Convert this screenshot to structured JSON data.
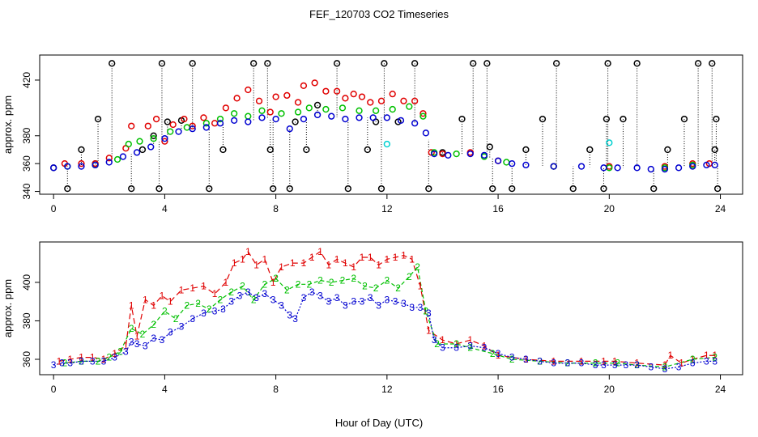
{
  "figure": {
    "title": "FEF_120703  CO2 Timeseries",
    "xlabel": "Hour of Day (UTC)"
  },
  "colors": {
    "black": "#000000",
    "red": "#e00000",
    "green": "#00c000",
    "blue": "#0000d0",
    "cyan": "#00d0d0"
  },
  "chart_data": [
    {
      "type": "scatter",
      "name": "top-panel",
      "ylabel": "approx. ppm",
      "xlim": [
        -0.5,
        24.8
      ],
      "ylim": [
        338,
        438
      ],
      "xticks": [
        0,
        4,
        8,
        12,
        16,
        20,
        24
      ],
      "yticks": [
        340,
        380,
        420
      ],
      "yticks_rendered": [
        340,
        360,
        380,
        420
      ],
      "marker": "circle",
      "range_lines": true,
      "series": [
        {
          "color": "black",
          "points": [
            [
              0.0,
              357
            ],
            [
              0.5,
              342
            ],
            [
              1.0,
              370
            ],
            [
              1.5,
              360
            ],
            [
              1.6,
              392
            ],
            [
              2.1,
              432
            ],
            [
              2.8,
              342
            ],
            [
              3.2,
              370
            ],
            [
              3.6,
              380
            ],
            [
              3.8,
              342
            ],
            [
              3.9,
              432
            ],
            [
              4.1,
              390
            ],
            [
              4.6,
              391
            ],
            [
              5.0,
              432
            ],
            [
              5.6,
              342
            ],
            [
              6.1,
              370
            ],
            [
              7.2,
              432
            ],
            [
              7.7,
              432
            ],
            [
              7.8,
              370
            ],
            [
              7.9,
              342
            ],
            [
              8.5,
              342
            ],
            [
              8.7,
              390
            ],
            [
              9.1,
              370
            ],
            [
              9.5,
              402
            ],
            [
              10.2,
              432
            ],
            [
              10.6,
              342
            ],
            [
              11.3,
              370
            ],
            [
              11.6,
              390
            ],
            [
              11.8,
              342
            ],
            [
              11.9,
              432
            ],
            [
              12.4,
              390
            ],
            [
              13.0,
              432
            ],
            [
              13.5,
              342
            ],
            [
              14.0,
              368
            ],
            [
              14.7,
              392
            ],
            [
              15.1,
              432
            ],
            [
              15.6,
              432
            ],
            [
              15.7,
              372
            ],
            [
              15.8,
              342
            ],
            [
              16.5,
              342
            ],
            [
              17.0,
              370
            ],
            [
              17.6,
              392
            ],
            [
              18.1,
              432
            ],
            [
              18.7,
              342
            ],
            [
              19.3,
              370
            ],
            [
              19.8,
              342
            ],
            [
              19.9,
              392
            ],
            [
              19.95,
              432
            ],
            [
              20.5,
              392
            ],
            [
              21.0,
              432
            ],
            [
              21.6,
              342
            ],
            [
              22.1,
              370
            ],
            [
              22.7,
              392
            ],
            [
              23.2,
              432
            ],
            [
              23.7,
              432
            ],
            [
              23.8,
              370
            ],
            [
              23.85,
              392
            ],
            [
              23.9,
              342
            ]
          ]
        },
        {
          "color": "red",
          "points": [
            [
              0.4,
              360
            ],
            [
              1.0,
              360
            ],
            [
              1.5,
              360
            ],
            [
              2.0,
              364
            ],
            [
              2.6,
              371
            ],
            [
              2.8,
              387
            ],
            [
              3.4,
              387
            ],
            [
              3.7,
              392
            ],
            [
              4.0,
              376
            ],
            [
              4.3,
              388
            ],
            [
              4.7,
              392
            ],
            [
              5.0,
              387
            ],
            [
              5.4,
              393
            ],
            [
              5.8,
              389
            ],
            [
              6.2,
              400
            ],
            [
              6.6,
              407
            ],
            [
              7.0,
              413
            ],
            [
              7.4,
              405
            ],
            [
              7.8,
              397
            ],
            [
              8.0,
              408
            ],
            [
              8.4,
              409
            ],
            [
              8.8,
              404
            ],
            [
              9.0,
              416
            ],
            [
              9.4,
              418
            ],
            [
              9.8,
              412
            ],
            [
              10.2,
              412
            ],
            [
              10.5,
              407
            ],
            [
              10.8,
              410
            ],
            [
              11.1,
              408
            ],
            [
              11.4,
              404
            ],
            [
              11.8,
              405
            ],
            [
              12.2,
              410
            ],
            [
              12.6,
              405
            ],
            [
              13.0,
              405
            ],
            [
              13.3,
              396
            ],
            [
              13.6,
              368
            ],
            [
              14.0,
              367
            ],
            [
              15.0,
              368
            ],
            [
              16.0,
              362
            ],
            [
              18.0,
              358
            ],
            [
              20.0,
              358
            ],
            [
              22.0,
              358
            ],
            [
              23.0,
              360
            ],
            [
              23.6,
              360
            ]
          ]
        },
        {
          "color": "green",
          "points": [
            [
              0.5,
              358
            ],
            [
              1.5,
              359
            ],
            [
              2.3,
              363
            ],
            [
              2.7,
              374
            ],
            [
              3.1,
              376
            ],
            [
              3.6,
              378
            ],
            [
              4.2,
              383
            ],
            [
              4.8,
              386
            ],
            [
              5.5,
              389
            ],
            [
              6.0,
              392
            ],
            [
              6.5,
              396
            ],
            [
              7.0,
              394
            ],
            [
              7.5,
              398
            ],
            [
              8.2,
              396
            ],
            [
              8.8,
              397
            ],
            [
              9.2,
              400
            ],
            [
              9.8,
              399
            ],
            [
              10.4,
              400
            ],
            [
              11.0,
              398
            ],
            [
              11.6,
              398
            ],
            [
              12.2,
              399
            ],
            [
              12.8,
              401
            ],
            [
              13.3,
              394
            ],
            [
              13.7,
              368
            ],
            [
              14.5,
              367
            ],
            [
              15.5,
              365
            ],
            [
              16.3,
              361
            ],
            [
              18.0,
              358
            ],
            [
              20.0,
              357
            ],
            [
              22.0,
              357
            ],
            [
              23.0,
              359
            ]
          ]
        },
        {
          "color": "blue",
          "points": [
            [
              0.0,
              357
            ],
            [
              0.5,
              358
            ],
            [
              1.0,
              358
            ],
            [
              1.5,
              359
            ],
            [
              2.0,
              361
            ],
            [
              2.5,
              365
            ],
            [
              3.0,
              368
            ],
            [
              3.5,
              372
            ],
            [
              4.0,
              378
            ],
            [
              4.5,
              383
            ],
            [
              5.0,
              385
            ],
            [
              5.5,
              386
            ],
            [
              6.0,
              389
            ],
            [
              6.5,
              391
            ],
            [
              7.0,
              390
            ],
            [
              7.5,
              393
            ],
            [
              8.0,
              392
            ],
            [
              8.5,
              385
            ],
            [
              9.0,
              392
            ],
            [
              9.5,
              395
            ],
            [
              10.0,
              394
            ],
            [
              10.5,
              392
            ],
            [
              11.0,
              393
            ],
            [
              11.5,
              393
            ],
            [
              12.0,
              393
            ],
            [
              12.5,
              391
            ],
            [
              13.0,
              389
            ],
            [
              13.4,
              382
            ],
            [
              13.7,
              367
            ],
            [
              14.2,
              366
            ],
            [
              15.0,
              367
            ],
            [
              15.5,
              366
            ],
            [
              16.0,
              362
            ],
            [
              16.5,
              360
            ],
            [
              17.0,
              359
            ],
            [
              18.0,
              358
            ],
            [
              19.0,
              358
            ],
            [
              19.8,
              357
            ],
            [
              20.3,
              357
            ],
            [
              21.0,
              357
            ],
            [
              21.5,
              356
            ],
            [
              22.0,
              356
            ],
            [
              22.5,
              357
            ],
            [
              23.0,
              358
            ],
            [
              23.5,
              359
            ],
            [
              23.8,
              359
            ]
          ]
        },
        {
          "color": "cyan",
          "points": [
            [
              12.0,
              374
            ],
            [
              20.0,
              375
            ]
          ]
        }
      ]
    },
    {
      "type": "line",
      "name": "bottom-panel",
      "ylabel": "approx. ppm",
      "xlim": [
        -0.5,
        24.8
      ],
      "ylim": [
        352,
        421
      ],
      "xticks": [
        0,
        4,
        8,
        12,
        16,
        20,
        24
      ],
      "yticks": [
        360,
        380,
        400
      ],
      "marker": "digit",
      "series": [
        {
          "label": "1",
          "color": "red",
          "x": [
            0.2,
            0.6,
            1.0,
            1.4,
            1.8,
            2.2,
            2.6,
            2.8,
            3.0,
            3.3,
            3.6,
            3.9,
            4.2,
            4.6,
            5.0,
            5.4,
            5.8,
            6.2,
            6.5,
            6.8,
            7.0,
            7.3,
            7.6,
            7.9,
            8.2,
            8.6,
            9.0,
            9.3,
            9.6,
            9.9,
            10.2,
            10.5,
            10.8,
            11.1,
            11.4,
            11.7,
            12.0,
            12.3,
            12.6,
            12.9,
            13.2,
            13.5,
            14.0,
            14.5,
            15.0,
            15.5,
            16.0,
            17.0,
            18.0,
            19.0,
            19.8,
            20.2,
            21.0,
            22.0,
            22.2,
            22.6,
            23.0,
            23.5,
            23.8
          ],
          "y": [
            359,
            360,
            361,
            361,
            360,
            363,
            367,
            388,
            372,
            391,
            388,
            393,
            390,
            396,
            397,
            398,
            394,
            400,
            410,
            412,
            416,
            409,
            412,
            400,
            408,
            410,
            410,
            413,
            416,
            409,
            412,
            410,
            408,
            413,
            413,
            409,
            412,
            413,
            414,
            412,
            398,
            375,
            370,
            368,
            370,
            367,
            362,
            360,
            359,
            359,
            359,
            359,
            358,
            357,
            362,
            358,
            360,
            362,
            362
          ]
        },
        {
          "label": "2",
          "color": "green",
          "x": [
            0.4,
            1.0,
            1.6,
            2.0,
            2.4,
            2.8,
            3.2,
            3.6,
            4.0,
            4.4,
            4.8,
            5.2,
            5.6,
            6.0,
            6.4,
            6.8,
            7.2,
            7.6,
            8.0,
            8.4,
            8.8,
            9.2,
            9.6,
            10.0,
            10.4,
            10.8,
            11.2,
            11.6,
            12.0,
            12.4,
            12.8,
            13.1,
            13.4,
            13.8,
            14.5,
            15.0,
            15.8,
            16.5,
            17.5,
            18.5,
            19.5,
            20.3,
            21.0,
            22.0,
            23.0,
            23.8
          ],
          "y": [
            358,
            359,
            359,
            361,
            364,
            376,
            373,
            378,
            385,
            381,
            388,
            389,
            386,
            391,
            395,
            398,
            391,
            399,
            402,
            396,
            399,
            399,
            401,
            400,
            401,
            402,
            398,
            397,
            401,
            397,
            403,
            408,
            385,
            368,
            368,
            366,
            363,
            360,
            359,
            358,
            358,
            358,
            357,
            356,
            360,
            361
          ]
        },
        {
          "label": "3",
          "color": "blue",
          "x": [
            0.0,
            0.3,
            0.6,
            1.0,
            1.4,
            1.8,
            2.2,
            2.6,
            2.8,
            3.0,
            3.3,
            3.6,
            3.9,
            4.2,
            4.6,
            5.0,
            5.4,
            5.8,
            6.1,
            6.4,
            6.7,
            7.0,
            7.3,
            7.6,
            7.9,
            8.2,
            8.5,
            8.7,
            9.0,
            9.3,
            9.6,
            9.9,
            10.2,
            10.5,
            10.8,
            11.1,
            11.4,
            11.7,
            12.0,
            12.3,
            12.6,
            12.9,
            13.2,
            13.5,
            13.7,
            14.0,
            14.5,
            15.0,
            15.5,
            16.0,
            16.5,
            17.0,
            17.5,
            18.0,
            18.5,
            19.0,
            19.5,
            19.8,
            20.2,
            20.6,
            21.0,
            21.5,
            22.0,
            22.5,
            23.0,
            23.5,
            23.8
          ],
          "y": [
            357,
            358,
            358,
            359,
            359,
            359,
            361,
            364,
            369,
            368,
            367,
            371,
            370,
            374,
            377,
            381,
            384,
            385,
            386,
            390,
            393,
            395,
            392,
            394,
            391,
            388,
            383,
            381,
            392,
            395,
            393,
            390,
            392,
            388,
            390,
            390,
            392,
            388,
            391,
            390,
            389,
            387,
            387,
            384,
            370,
            366,
            366,
            367,
            366,
            363,
            361,
            360,
            359,
            358,
            358,
            358,
            357,
            357,
            357,
            357,
            357,
            356,
            355,
            356,
            358,
            359,
            359
          ]
        }
      ]
    }
  ]
}
